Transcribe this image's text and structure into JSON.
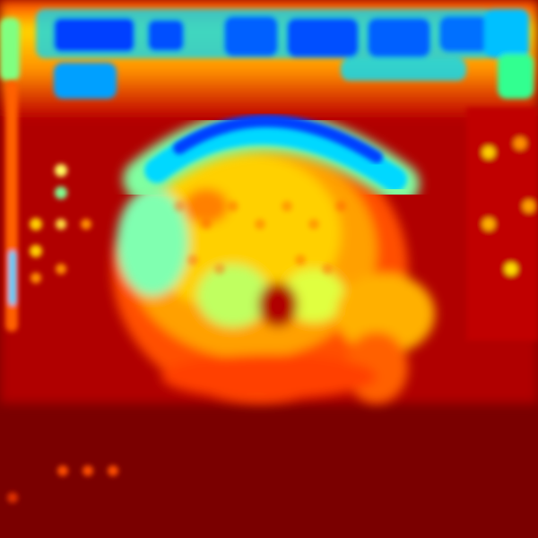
{
  "image": {
    "kind": "heatmap-overlay",
    "colormap": "jet",
    "colors": {
      "low": "#0000c8",
      "mid_low": "#00e0ff",
      "mid": "#80ff80",
      "mid_high": "#ffff00",
      "high": "#ff6000",
      "max": "#7a0000"
    }
  }
}
